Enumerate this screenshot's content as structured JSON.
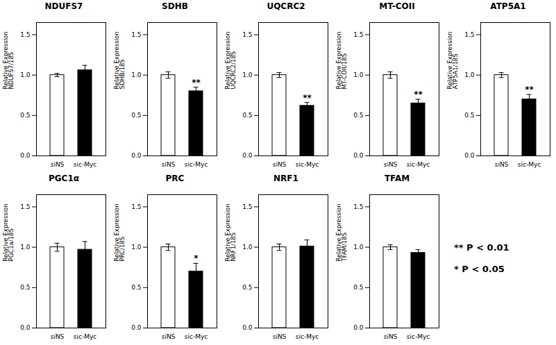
{
  "chart_data": [
    {
      "type": "bar",
      "title": "NDUFS7",
      "y_label": "Relative Expression\nNDUFS7/18S",
      "categories": [
        "siNS",
        "sic-Myc"
      ],
      "values": [
        1.0,
        1.06
      ],
      "errors": [
        0.02,
        0.06
      ],
      "colors": [
        "white",
        "black"
      ],
      "ylim": [
        0.0,
        1.65
      ],
      "yticks": [
        {
          "value": 0.0,
          "label": "0.0"
        },
        {
          "value": 0.5,
          "label": "0.5"
        },
        {
          "value": 1.0,
          "label": "1.0"
        },
        {
          "value": 1.5,
          "label": "1.5"
        }
      ],
      "grid": false
    },
    {
      "type": "bar",
      "title": "SDHB",
      "y_label": "Relative Expression\nSDHB/18S",
      "categories": [
        "siNS",
        "sic-Myc"
      ],
      "values": [
        1.0,
        0.8
      ],
      "errors": [
        0.04,
        0.05
      ],
      "colors": [
        "white",
        "black"
      ],
      "ylim": [
        0.0,
        1.65
      ],
      "yticks": [
        {
          "value": 0.0,
          "label": "0.0"
        },
        {
          "value": 0.5,
          "label": "0.5"
        },
        {
          "value": 1.0,
          "label": "1.0"
        },
        {
          "value": 1.5,
          "label": "1.5"
        }
      ],
      "grid": false,
      "annotations": [
        {
          "x": "sic-Myc",
          "text": "**"
        }
      ]
    },
    {
      "type": "bar",
      "title": "UQCRC2",
      "y_label": "Relative Expression\nUQCRC2/18S",
      "categories": [
        "siNS",
        "sic-Myc"
      ],
      "values": [
        1.0,
        0.62
      ],
      "errors": [
        0.03,
        0.04
      ],
      "colors": [
        "white",
        "black"
      ],
      "ylim": [
        0.0,
        1.65
      ],
      "yticks": [
        {
          "value": 0.0,
          "label": "0.0"
        },
        {
          "value": 0.5,
          "label": "0.5"
        },
        {
          "value": 1.0,
          "label": "1.0"
        },
        {
          "value": 1.5,
          "label": "1.5"
        }
      ],
      "grid": false,
      "annotations": [
        {
          "x": "sic-Myc",
          "text": "**"
        }
      ]
    },
    {
      "type": "bar",
      "title": "MT-COII",
      "y_label": "Relative Expression\nMT-COII/18S",
      "categories": [
        "siNS",
        "sic-Myc"
      ],
      "values": [
        1.0,
        0.65
      ],
      "errors": [
        0.04,
        0.05
      ],
      "colors": [
        "white",
        "black"
      ],
      "ylim": [
        0.0,
        1.65
      ],
      "yticks": [
        {
          "value": 0.0,
          "label": "0.0"
        },
        {
          "value": 0.5,
          "label": "0.5"
        },
        {
          "value": 1.0,
          "label": "1.0"
        },
        {
          "value": 1.5,
          "label": "1.5"
        }
      ],
      "grid": false,
      "annotations": [
        {
          "x": "sic-Myc",
          "text": "**"
        }
      ]
    },
    {
      "type": "bar",
      "title": "ATP5A1",
      "y_label": "Relative Expression\nATP5A1/18S",
      "categories": [
        "siNS",
        "sic-Myc"
      ],
      "values": [
        1.0,
        0.7
      ],
      "errors": [
        0.03,
        0.06
      ],
      "colors": [
        "white",
        "black"
      ],
      "ylim": [
        0.0,
        1.65
      ],
      "yticks": [
        {
          "value": 0.0,
          "label": "0.0"
        },
        {
          "value": 0.5,
          "label": "0.5"
        },
        {
          "value": 1.0,
          "label": "1.0"
        },
        {
          "value": 1.5,
          "label": "1.5"
        }
      ],
      "grid": false,
      "annotations": [
        {
          "x": "sic-Myc",
          "text": "**"
        }
      ]
    },
    {
      "type": "bar",
      "title": "PGC1α",
      "y_label": "Relative Expression\nPGC1a/18S",
      "categories": [
        "siNS",
        "sic-Myc"
      ],
      "values": [
        1.0,
        0.97
      ],
      "errors": [
        0.05,
        0.1
      ],
      "colors": [
        "white",
        "black"
      ],
      "ylim": [
        0.0,
        1.65
      ],
      "yticks": [
        {
          "value": 0.0,
          "label": "0.0"
        },
        {
          "value": 0.5,
          "label": "0.5"
        },
        {
          "value": 1.0,
          "label": "1.0"
        },
        {
          "value": 1.5,
          "label": "1.5"
        }
      ],
      "grid": false
    },
    {
      "type": "bar",
      "title": "PRC",
      "y_label": "Relative Expression\nPRC/18S",
      "categories": [
        "siNS",
        "sic-Myc"
      ],
      "values": [
        1.0,
        0.7
      ],
      "errors": [
        0.04,
        0.1
      ],
      "colors": [
        "white",
        "black"
      ],
      "ylim": [
        0.0,
        1.65
      ],
      "yticks": [
        {
          "value": 0.0,
          "label": "0.0"
        },
        {
          "value": 0.5,
          "label": "0.5"
        },
        {
          "value": 1.0,
          "label": "1.0"
        },
        {
          "value": 1.5,
          "label": "1.5"
        }
      ],
      "grid": false,
      "annotations": [
        {
          "x": "sic-Myc",
          "text": "*"
        }
      ]
    },
    {
      "type": "bar",
      "title": "NRF1",
      "y_label": "Relative Expression\nNRF1/18S",
      "categories": [
        "siNS",
        "sic-Myc"
      ],
      "values": [
        1.0,
        1.01
      ],
      "errors": [
        0.04,
        0.08
      ],
      "colors": [
        "white",
        "black"
      ],
      "ylim": [
        0.0,
        1.65
      ],
      "yticks": [
        {
          "value": 0.0,
          "label": "0.0"
        },
        {
          "value": 0.5,
          "label": "0.5"
        },
        {
          "value": 1.0,
          "label": "1.0"
        },
        {
          "value": 1.5,
          "label": "1.5"
        }
      ],
      "grid": false
    },
    {
      "type": "bar",
      "title": "TFAM",
      "y_label": "Relative Expression\nTFAM/18S",
      "categories": [
        "siNS",
        "sic-Myc"
      ],
      "values": [
        1.0,
        0.93
      ],
      "errors": [
        0.03,
        0.04
      ],
      "colors": [
        "white",
        "black"
      ],
      "ylim": [
        0.0,
        1.65
      ],
      "yticks": [
        {
          "value": 0.0,
          "label": "0.0"
        },
        {
          "value": 0.5,
          "label": "0.5"
        },
        {
          "value": 1.0,
          "label": "1.0"
        },
        {
          "value": 1.5,
          "label": "1.5"
        }
      ],
      "grid": false
    }
  ],
  "annotations": [
    "** P < 0.01",
    "* P < 0.05"
  ]
}
